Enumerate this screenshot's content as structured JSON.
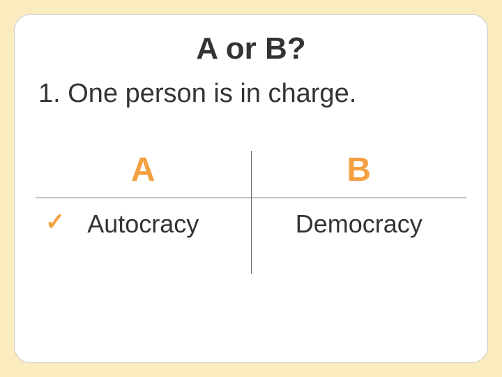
{
  "title": "A or B?",
  "question": "1. One person is in charge.",
  "options": {
    "a": {
      "header": "A",
      "value": "Autocracy",
      "correct": true
    },
    "b": {
      "header": "B",
      "value": "Democracy",
      "correct": false
    }
  },
  "colors": {
    "background": "#faecbf",
    "card_bg": "#ffffff",
    "accent": "#f4a042",
    "text": "#333333",
    "divider": "#666666"
  },
  "checkmark_glyph": "✓"
}
